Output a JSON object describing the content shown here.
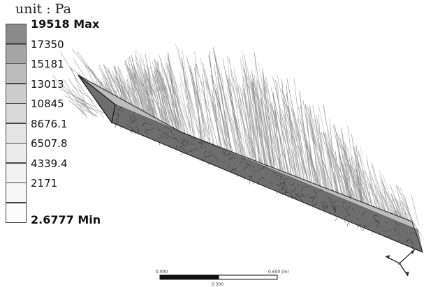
{
  "unit_label": "unit : Pa",
  "legend": [
    {
      "value": "19518 Max",
      "color": "#8a8a8a",
      "bold": true
    },
    {
      "value": "17350",
      "color": "#a6a6a6",
      "bold": false
    },
    {
      "value": "15181",
      "color": "#bcbcbc",
      "bold": false
    },
    {
      "value": "13013",
      "color": "#cdcdcd",
      "bold": false
    },
    {
      "value": "10845",
      "color": "#dadada",
      "bold": false
    },
    {
      "value": "8676.1",
      "color": "#e4e4e4",
      "bold": false
    },
    {
      "value": "6507.8",
      "color": "#ececec",
      "bold": false
    },
    {
      "value": "4339.4",
      "color": "#f2f2f2",
      "bold": false
    },
    {
      "value": "2171",
      "color": "#f7f7f7",
      "bold": false
    },
    {
      "value": "2.6777 Min",
      "color": "#fcfcfc",
      "bold": true
    }
  ],
  "scale_bar": {
    "start_label": "0.000",
    "end_label": "0.600 (m)",
    "mid_label": "0.300"
  },
  "colors": {
    "mesh": "#333333",
    "arrows": "#9a9a9a",
    "background": "#ffffff"
  }
}
